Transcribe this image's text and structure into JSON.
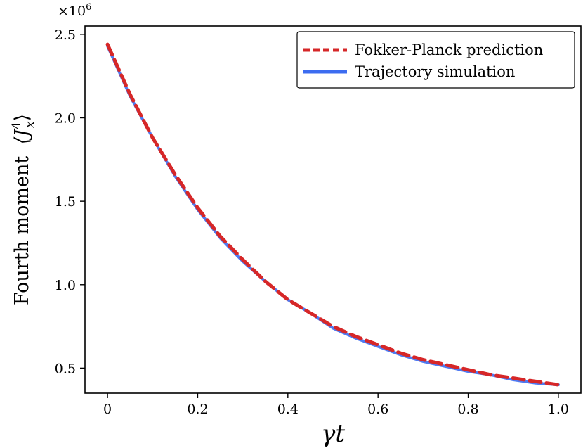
{
  "chart_data": {
    "type": "line",
    "title": "",
    "xlabel": "γt",
    "ylabel_text": "Fourth moment",
    "ylabel_symbol": "⟨J",
    "ylabel_sup": "4",
    "ylabel_sub": "x",
    "ylabel_close": "⟩",
    "y_scale_label": "×10",
    "y_scale_exp": "6",
    "xlim": [
      -0.05,
      1.05
    ],
    "ylim": [
      0.35,
      2.55
    ],
    "xticks": [
      0,
      0.2,
      0.4,
      0.6,
      0.8,
      1.0
    ],
    "xtick_labels": [
      "0",
      "0.2",
      "0.4",
      "0.6",
      "0.8",
      "1.0"
    ],
    "yticks": [
      0.5,
      1.0,
      1.5,
      2.0,
      2.5
    ],
    "ytick_labels": [
      "0.5",
      "1.0",
      "1.5",
      "2.0",
      "2.5"
    ],
    "legend_position": "top-right",
    "grid": false,
    "series": [
      {
        "name": "Fokker-Planck prediction",
        "color": "#d62728",
        "style": "dashed",
        "x": [
          0,
          0.05,
          0.1,
          0.15,
          0.2,
          0.25,
          0.3,
          0.35,
          0.4,
          0.45,
          0.5,
          0.55,
          0.6,
          0.65,
          0.7,
          0.75,
          0.8,
          0.85,
          0.9,
          0.95,
          1.0
        ],
        "values": [
          2.44,
          2.14,
          1.88,
          1.66,
          1.46,
          1.29,
          1.15,
          1.02,
          0.91,
          0.83,
          0.75,
          0.69,
          0.64,
          0.59,
          0.55,
          0.52,
          0.49,
          0.46,
          0.44,
          0.42,
          0.4
        ]
      },
      {
        "name": "Trajectory simulation",
        "color": "#3c6cf0",
        "style": "solid",
        "x": [
          0,
          0.05,
          0.1,
          0.15,
          0.2,
          0.25,
          0.3,
          0.35,
          0.4,
          0.45,
          0.5,
          0.55,
          0.6,
          0.65,
          0.7,
          0.75,
          0.8,
          0.85,
          0.9,
          0.95,
          1.0
        ],
        "values": [
          2.43,
          2.13,
          1.88,
          1.65,
          1.45,
          1.28,
          1.14,
          1.02,
          0.91,
          0.83,
          0.74,
          0.68,
          0.63,
          0.58,
          0.54,
          0.51,
          0.48,
          0.46,
          0.43,
          0.41,
          0.4
        ]
      }
    ]
  }
}
